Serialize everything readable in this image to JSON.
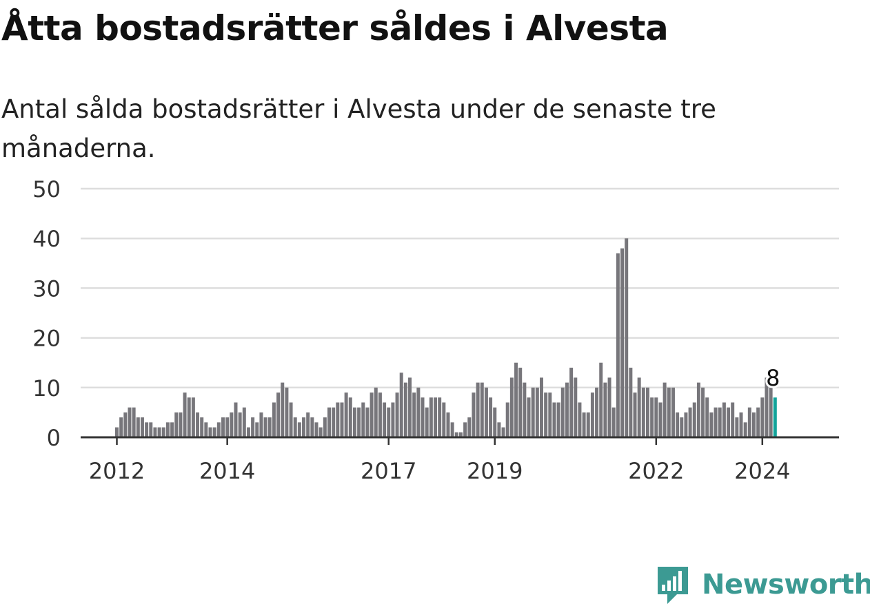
{
  "title": "Åtta bostadsrätter såldes i Alvesta",
  "subtitle": "Antal sålda bostadsrätter i Alvesta under de senaste tre månaderna.",
  "brand": {
    "name": "Newsworthy",
    "color": "#3c9a93",
    "icon": "newsworthy-logo-icon"
  },
  "chart_data": {
    "type": "bar",
    "title": "Åtta bostadsrätter såldes i Alvesta",
    "subtitle": "Antal sålda bostadsrätter i Alvesta under de senaste tre månaderna.",
    "xlabel": "",
    "ylabel": "",
    "ylim": [
      0,
      50
    ],
    "yticks": [
      0,
      10,
      20,
      30,
      40,
      50
    ],
    "grid": true,
    "legend": "none",
    "xtick_labels": [
      "2012",
      "2014",
      "2017",
      "2019",
      "2022",
      "2024"
    ],
    "xtick_bar_index": [
      0,
      26,
      64,
      89,
      127,
      152
    ],
    "colors": {
      "bars": "#77767b",
      "highlight": "#12a39a",
      "grid": "#dddddd",
      "axis": "#333333",
      "tick_text": "#333333"
    },
    "highlight_label": "8",
    "series": [
      {
        "values": [
          2,
          4,
          5,
          6,
          6,
          4,
          4,
          3,
          3,
          2,
          2,
          2,
          3,
          3,
          5,
          5,
          9,
          8,
          8,
          5,
          4,
          3,
          2,
          2,
          3,
          4,
          4,
          5,
          7,
          5,
          6,
          2,
          4,
          3,
          5,
          4,
          4,
          7,
          9,
          11,
          10,
          7,
          4,
          3,
          4,
          5,
          4,
          3,
          2,
          4,
          6,
          6,
          7,
          7,
          9,
          8,
          6,
          6,
          7,
          6,
          9,
          10,
          9,
          7,
          6,
          7,
          9,
          13,
          11,
          12,
          9,
          10,
          8,
          6,
          8,
          8,
          8,
          7,
          5,
          3,
          1,
          1,
          3,
          4,
          9,
          11,
          11,
          10,
          8,
          6,
          3,
          2,
          7,
          12,
          15,
          14,
          11,
          8,
          10,
          10,
          12,
          9,
          9,
          7,
          7,
          10,
          11,
          14,
          12,
          7,
          5,
          5,
          9,
          10,
          15,
          11,
          12,
          6,
          37,
          38,
          40,
          14,
          9,
          12,
          10,
          10,
          8,
          8,
          7,
          11,
          10,
          10,
          5,
          4,
          5,
          6,
          7,
          11,
          10,
          8,
          5,
          6,
          6,
          7,
          6,
          7,
          4,
          5,
          3,
          6,
          5,
          6,
          8,
          12,
          10,
          8
        ]
      }
    ]
  }
}
